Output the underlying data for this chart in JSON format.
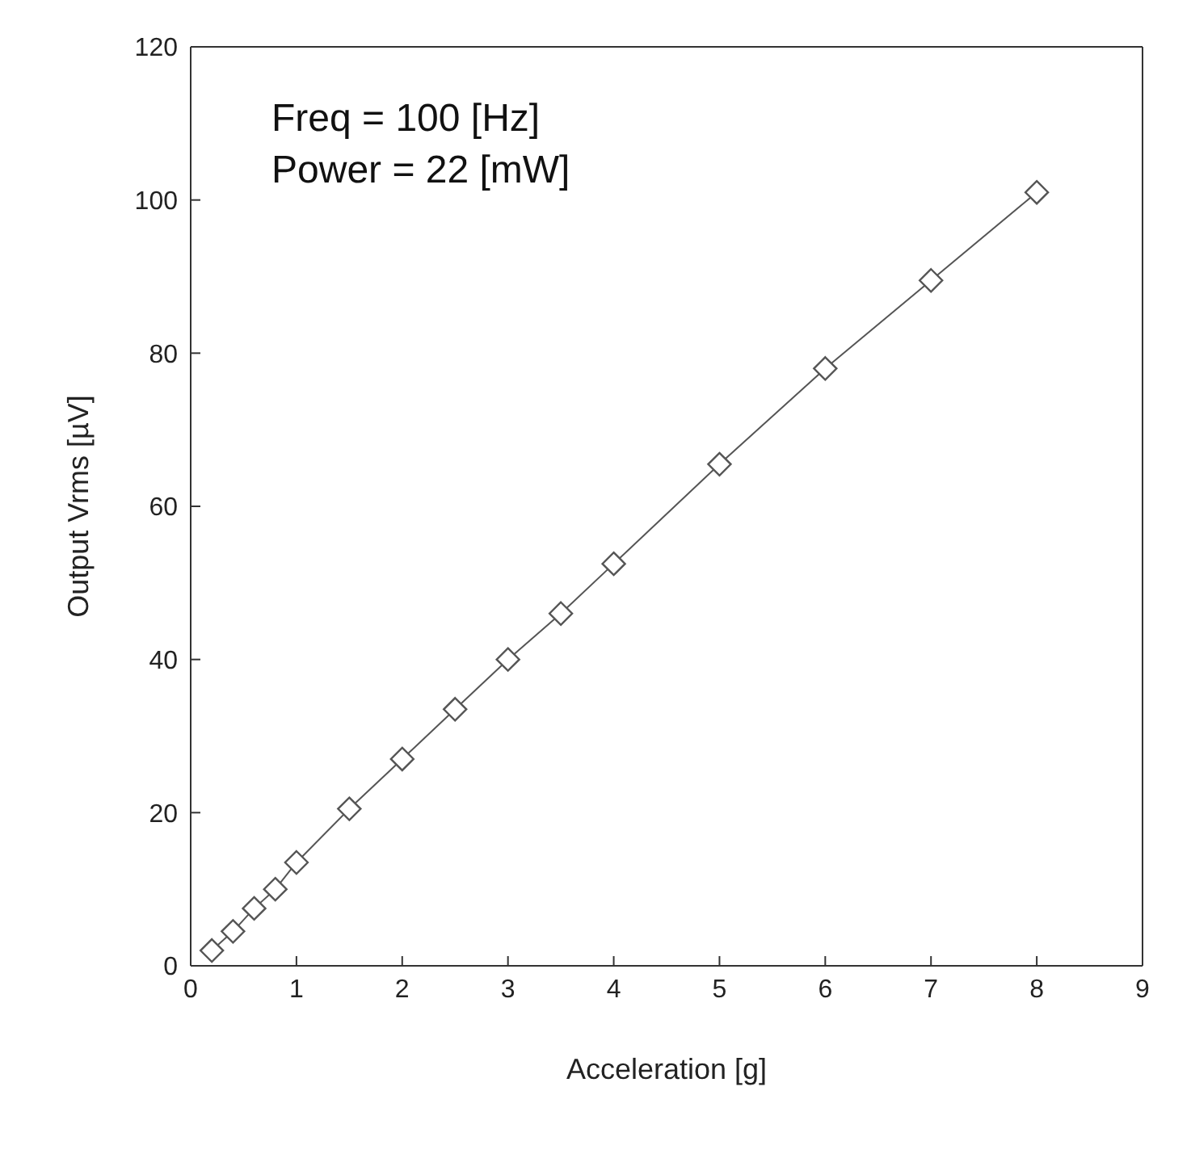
{
  "chart_data": {
    "type": "line",
    "xlabel": "Acceleration [g]",
    "ylabel": "Output Vrms [µV]",
    "annotations": [
      "Freq = 100 [Hz]",
      "Power = 22 [mW]"
    ],
    "x": [
      0.2,
      0.4,
      0.6,
      0.8,
      1,
      1.5,
      2,
      2.5,
      3,
      3.5,
      4,
      5,
      6,
      7,
      8
    ],
    "series": [
      {
        "color": "#555555",
        "values": [
          2,
          4.5,
          7.5,
          10,
          13.5,
          20.5,
          27,
          33.5,
          40,
          46,
          52.5,
          65.5,
          78,
          89.5,
          101
        ]
      }
    ],
    "xlim": [
      0,
      9
    ],
    "xticks": [
      0,
      1,
      2,
      3,
      4,
      5,
      6,
      7,
      8,
      9
    ],
    "ylim": [
      0,
      120
    ],
    "yticks": [
      0,
      20,
      40,
      60,
      80,
      100,
      120
    ],
    "marker": "diamond",
    "line_style": "solid"
  }
}
